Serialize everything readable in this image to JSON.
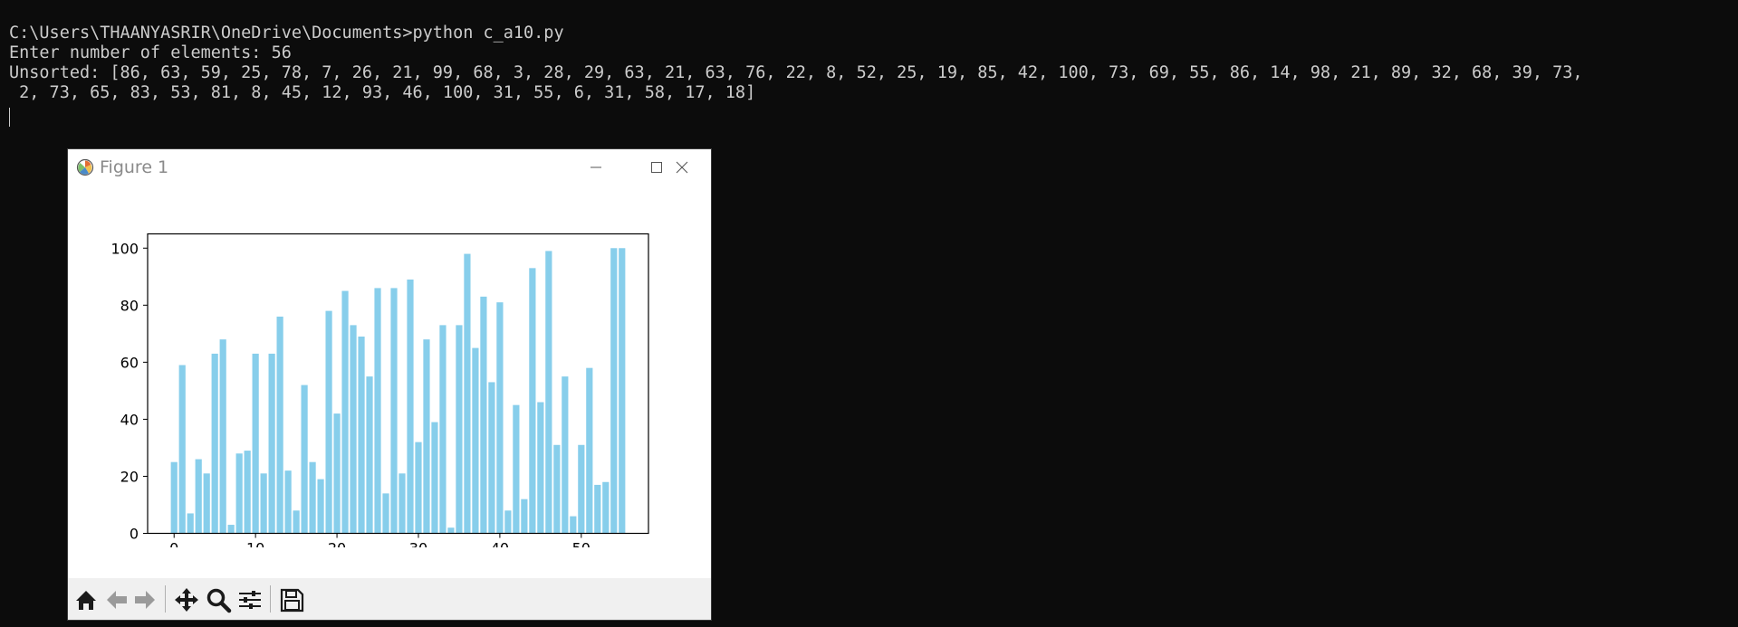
{
  "terminal": {
    "lines": [
      "C:\\Users\\THAANYASRIR\\OneDrive\\Documents>python c_a10.py",
      "Enter number of elements: 56",
      "Unsorted: [86, 63, 59, 25, 78, 7, 26, 21, 99, 68, 3, 28, 29, 63, 21, 63, 76, 22, 8, 52, 25, 19, 85, 42, 100, 73, 69, 55, 86, 14, 98, 21, 89, 32, 68, 39, 73,",
      " 2, 73, 65, 83, 53, 81, 8, 45, 12, 93, 46, 100, 31, 55, 6, 31, 58, 17, 18]"
    ]
  },
  "figure_window": {
    "title": "Figure 1",
    "icons": {
      "app": "matplotlib-logo-icon",
      "minimize": "minimize-icon",
      "maximize": "maximize-icon",
      "close": "close-icon"
    }
  },
  "toolbar": {
    "tools": [
      "home-icon",
      "back-arrow-icon",
      "forward-arrow-icon",
      "pan-move-icon",
      "zoom-magnifier-icon",
      "configure-subplots-icon",
      "save-floppy-icon"
    ]
  },
  "colors": {
    "terminal_bg": "#0c0c0c",
    "terminal_text": "#cccccc",
    "bar": "#87ceeb",
    "toolbar_bg": "#f0f0f0"
  },
  "chart_data": {
    "type": "bar",
    "x": [
      0,
      1,
      2,
      3,
      4,
      5,
      6,
      7,
      8,
      9,
      10,
      11,
      12,
      13,
      14,
      15,
      16,
      17,
      18,
      19,
      20,
      21,
      22,
      23,
      24,
      25,
      26,
      27,
      28,
      29,
      30,
      31,
      32,
      33,
      34,
      35,
      36,
      37,
      38,
      39,
      40,
      41,
      42,
      43,
      44,
      45,
      46,
      47,
      48,
      49,
      50,
      51,
      52,
      53,
      54,
      55
    ],
    "values": [
      25,
      59,
      7,
      26,
      21,
      63,
      68,
      3,
      28,
      29,
      63,
      21,
      63,
      76,
      22,
      8,
      52,
      25,
      19,
      78,
      42,
      85,
      73,
      69,
      55,
      86,
      14,
      86,
      21,
      89,
      32,
      68,
      39,
      73,
      2,
      73,
      98,
      65,
      83,
      53,
      81,
      8,
      45,
      12,
      93,
      46,
      99,
      31,
      55,
      6,
      31,
      58,
      17,
      18,
      100,
      100
    ],
    "xticks": [
      0,
      10,
      20,
      30,
      40,
      50
    ],
    "yticks": [
      0,
      20,
      40,
      60,
      80,
      100
    ],
    "xlim": [
      -3.25,
      58.25
    ],
    "ylim": [
      0,
      105
    ],
    "color": "#87ceeb",
    "title": "",
    "xlabel": "",
    "ylabel": "",
    "grid": false
  }
}
